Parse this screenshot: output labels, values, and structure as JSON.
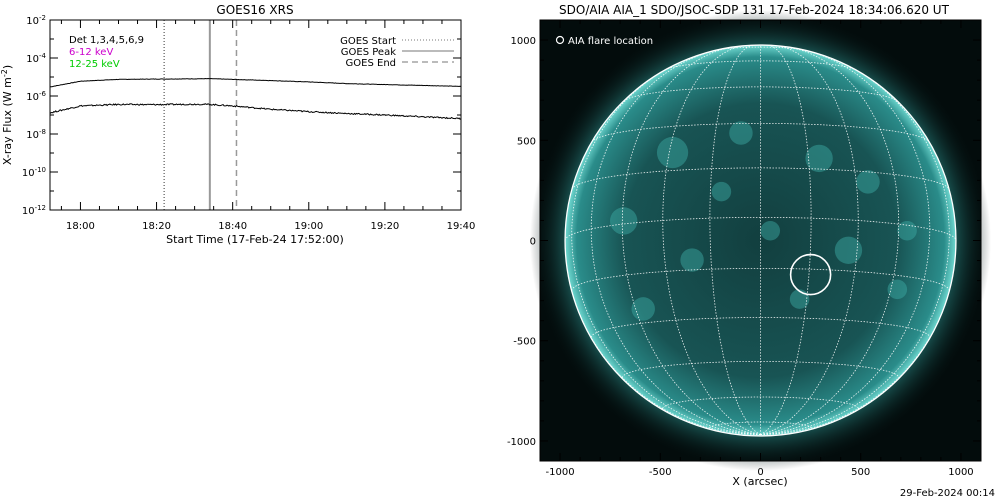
{
  "chart_data": [
    {
      "type": "line",
      "title": "GOES16 XRS",
      "xlabel": "Start Time (17-Feb-24 17:52:00)",
      "ylabel": "X-ray Flux (W m^-2)",
      "ylog": true,
      "xlim": [
        "17:52",
        "19:40"
      ],
      "ylim": [
        1e-12,
        0.01
      ],
      "x_ticks": [
        "18:00",
        "18:20",
        "18:40",
        "19:00",
        "19:20",
        "19:40"
      ],
      "y_ticks": [
        "10^-12",
        "10^-10",
        "10^-8",
        "10^-6",
        "10^-4",
        "10^-2"
      ],
      "legend_left": [
        "Det 1,3,4,5,6,9",
        "6-12 keV",
        "12-25 keV"
      ],
      "legend_left_colors": [
        "#000000",
        "#cc00cc",
        "#00cc00"
      ],
      "legend_right": [
        {
          "label": "GOES Start",
          "style": "dotted",
          "time": "18:22"
        },
        {
          "label": "GOES Peak",
          "style": "solid",
          "time": "18:34"
        },
        {
          "label": "GOES End",
          "style": "dashed",
          "time": "18:41"
        }
      ],
      "series": [
        {
          "style": "solid",
          "x": [
            "17:52",
            "18:00",
            "18:10",
            "18:20",
            "18:30",
            "18:34",
            "18:40",
            "18:50",
            "19:00",
            "19:10",
            "19:20",
            "19:30",
            "19:40"
          ],
          "values": [
            3e-06,
            6e-06,
            7.5e-06,
            7.8e-06,
            8e-06,
            8.2e-06,
            7.5e-06,
            6.5e-06,
            5.5e-06,
            4.5e-06,
            4e-06,
            3.6e-06,
            3.2e-06
          ]
        },
        {
          "style": "solid",
          "x": [
            "17:52",
            "18:00",
            "18:10",
            "18:20",
            "18:30",
            "18:34",
            "18:40",
            "18:50",
            "19:00",
            "19:10",
            "19:20",
            "19:30",
            "19:40"
          ],
          "values": [
            1.3e-07,
            3e-07,
            3.6e-07,
            3.5e-07,
            3.7e-07,
            3.6e-07,
            3e-07,
            2e-07,
            1.5e-07,
            1.2e-07,
            1e-07,
            8e-08,
            6.5e-08
          ]
        }
      ]
    },
    {
      "type": "image",
      "title": "SDO/AIA AIA_1 SDO/JSOC-SDP 131 17-Feb-2024 18:34:06.620 UT",
      "xlabel": "X (arcsec)",
      "ylabel": "",
      "xlim": [
        -1100,
        1100
      ],
      "ylim": [
        -1100,
        1100
      ],
      "x_ticks": [
        "-1000",
        "-500",
        "0",
        "500",
        "1000"
      ],
      "y_ticks": [
        "-1000",
        "-500",
        "0",
        "500",
        "1000"
      ],
      "legend": "AIA flare location",
      "flare_location": {
        "x": 250,
        "y": -170
      },
      "solar_radius_arcsec": 975,
      "disk_color": "#1e7876"
    }
  ],
  "footer_timestamp": "29-Feb-2024 00:14"
}
